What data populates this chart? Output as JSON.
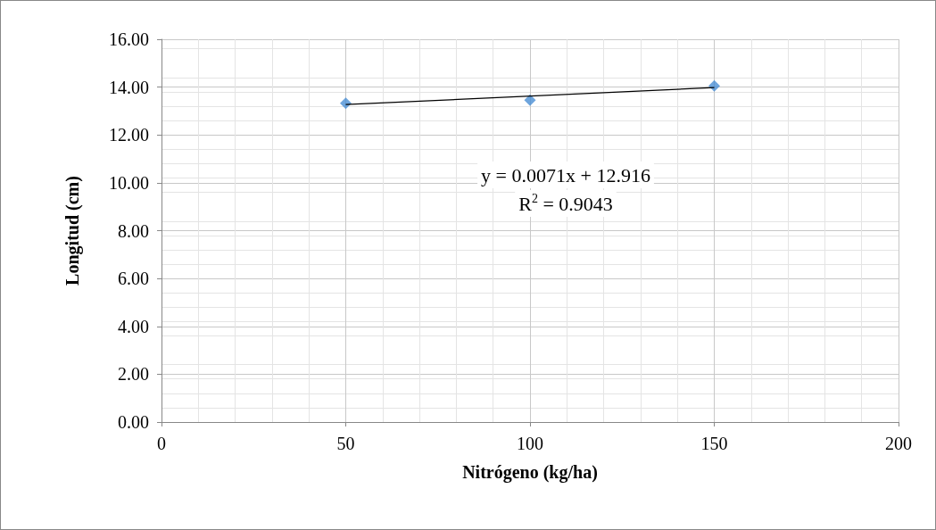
{
  "chart_data": {
    "type": "scatter",
    "xlabel": "Nitrógeno (kg/ha)",
    "ylabel": "Longitud (cm)",
    "x": [
      50,
      100,
      150
    ],
    "series": [
      {
        "color": "#4a8fd4",
        "marker": "diamond",
        "values": [
          13.32,
          13.45,
          14.05
        ]
      },
      {
        "type": "line",
        "color": "#000000",
        "marker": "none",
        "x": [
          50,
          150
        ],
        "values": [
          13.27,
          13.98
        ]
      }
    ],
    "xlim": [
      0,
      200
    ],
    "xticks": [
      0,
      50,
      100,
      150,
      200
    ],
    "ylim": [
      0,
      16
    ],
    "yticks": [
      {
        "value": 0,
        "label": "0.00"
      },
      {
        "value": 2,
        "label": "2.00"
      },
      {
        "value": 4,
        "label": "4.00"
      },
      {
        "value": 6,
        "label": "6.00"
      },
      {
        "value": 8,
        "label": "8.00"
      },
      {
        "value": 10,
        "label": "10.00"
      },
      {
        "value": 12,
        "label": "12.00"
      },
      {
        "value": 14,
        "label": "14.00"
      },
      {
        "value": 16,
        "label": "16.00"
      }
    ],
    "grid": true,
    "annotations": [
      "y = 0.0071x + 12.916",
      "R$^{2}$ = 0.9043"
    ]
  }
}
